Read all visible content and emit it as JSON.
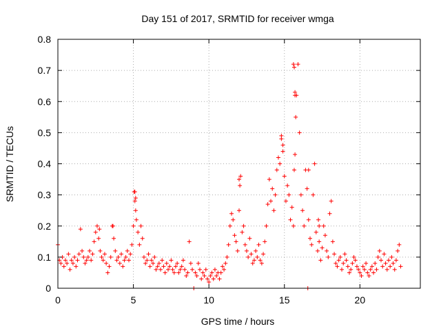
{
  "chart_data": {
    "type": "scatter",
    "title": "Day 151 of 2017, SRMTID for receiver wmga",
    "xlabel": "GPS time / hours",
    "ylabel": "SRMTID / TECUs",
    "xlim": [
      0,
      24
    ],
    "ylim": [
      0,
      0.8
    ],
    "xticks": [
      "0",
      "5",
      "10",
      "15",
      "20"
    ],
    "yticks": [
      "0",
      "0.1",
      "0.2",
      "0.3",
      "0.4",
      "0.5",
      "0.6",
      "0.7",
      "0.8"
    ],
    "grid": true,
    "marker": "plus",
    "colors": {
      "series": "#ff0000",
      "grid": "#aaaaaa",
      "axis": "#000000"
    },
    "series": [
      {
        "name": "SRMTID",
        "x": [
          0.0,
          0.1,
          0.2,
          0.3,
          0.4,
          0.5,
          0.6,
          0.7,
          0.8,
          0.9,
          1.0,
          1.1,
          1.2,
          1.3,
          1.4,
          1.5,
          1.6,
          1.7,
          1.8,
          1.9,
          2.0,
          2.1,
          2.2,
          2.3,
          2.4,
          2.5,
          2.6,
          2.7,
          2.8,
          2.9,
          3.0,
          3.1,
          3.2,
          3.3,
          3.4,
          3.5,
          3.6,
          3.7,
          3.8,
          3.9,
          4.0,
          4.1,
          4.2,
          4.3,
          4.4,
          4.5,
          4.6,
          4.7,
          4.8,
          4.9,
          5.0,
          5.05,
          5.1,
          5.15,
          5.2,
          5.3,
          5.4,
          5.5,
          5.6,
          5.7,
          5.8,
          5.9,
          6.0,
          6.1,
          6.2,
          6.3,
          6.4,
          6.5,
          6.6,
          6.7,
          6.8,
          6.9,
          7.0,
          7.1,
          7.2,
          7.3,
          7.4,
          7.5,
          7.6,
          7.7,
          7.8,
          7.9,
          8.0,
          8.1,
          8.2,
          8.3,
          8.4,
          8.5,
          8.6,
          8.7,
          8.8,
          8.9,
          9.0,
          9.1,
          9.2,
          9.3,
          9.4,
          9.5,
          9.6,
          9.7,
          9.8,
          9.9,
          10.0,
          10.1,
          10.2,
          10.3,
          10.4,
          10.5,
          10.6,
          10.7,
          10.8,
          10.9,
          11.0,
          11.1,
          11.2,
          11.3,
          11.4,
          11.5,
          11.6,
          11.7,
          11.8,
          11.9,
          12.0,
          12.1,
          12.2,
          12.3,
          12.4,
          12.5,
          12.6,
          12.7,
          12.8,
          12.9,
          13.0,
          13.1,
          13.2,
          13.3,
          13.4,
          13.5,
          13.6,
          13.7,
          13.8,
          13.9,
          14.0,
          14.1,
          14.2,
          14.3,
          14.4,
          14.5,
          14.6,
          14.7,
          14.8,
          14.9,
          15.0,
          15.1,
          15.2,
          15.3,
          15.4,
          15.5,
          15.6,
          15.65,
          15.7,
          15.75,
          15.8,
          15.9,
          16.0,
          16.1,
          16.2,
          16.3,
          16.4,
          16.5,
          16.6,
          16.7,
          16.8,
          16.9,
          17.0,
          17.1,
          17.2,
          17.3,
          17.4,
          17.5,
          17.6,
          17.7,
          17.8,
          17.9,
          18.0,
          18.1,
          18.2,
          18.3,
          18.4,
          18.5,
          18.6,
          18.7,
          18.8,
          18.9,
          19.0,
          19.1,
          19.2,
          19.3,
          19.4,
          19.5,
          19.6,
          19.7,
          19.8,
          19.9,
          20.0,
          20.1,
          20.2,
          20.3,
          20.4,
          20.5,
          20.6,
          20.7,
          20.8,
          20.9,
          21.0,
          21.1,
          21.2,
          21.3,
          21.4,
          21.5,
          21.6,
          21.7,
          21.8,
          21.9,
          22.0,
          22.1,
          22.2,
          22.3,
          22.4,
          22.5,
          22.6,
          22.7,
          2.75,
          3.65,
          5.1,
          5.15,
          12.0,
          12.05,
          14.8,
          14.9,
          15.6,
          15.65,
          15.7,
          15.7,
          16.55,
          16.6,
          17.25,
          17.3
        ],
        "y": [
          0.14,
          0.09,
          0.08,
          0.1,
          0.07,
          0.09,
          0.08,
          0.11,
          0.06,
          0.09,
          0.08,
          0.1,
          0.07,
          0.09,
          0.11,
          0.19,
          0.12,
          0.1,
          0.08,
          0.09,
          0.1,
          0.12,
          0.09,
          0.11,
          0.15,
          0.18,
          0.2,
          0.16,
          0.12,
          0.1,
          0.09,
          0.11,
          0.08,
          0.05,
          0.07,
          0.1,
          0.2,
          0.16,
          0.12,
          0.09,
          0.1,
          0.08,
          0.11,
          0.07,
          0.09,
          0.1,
          0.12,
          0.09,
          0.11,
          0.14,
          0.2,
          0.31,
          0.28,
          0.25,
          0.22,
          0.18,
          0.14,
          0.2,
          0.16,
          0.1,
          0.08,
          0.09,
          0.11,
          0.07,
          0.09,
          0.08,
          0.1,
          0.06,
          0.07,
          0.08,
          0.06,
          0.09,
          0.07,
          0.05,
          0.08,
          0.06,
          0.07,
          0.09,
          0.06,
          0.05,
          0.07,
          0.08,
          0.05,
          0.06,
          0.07,
          0.09,
          0.06,
          0.04,
          0.05,
          0.15,
          0.08,
          0.06,
          0.0,
          0.05,
          0.04,
          0.08,
          0.06,
          0.03,
          0.05,
          0.04,
          0.06,
          0.03,
          0.02,
          0.04,
          0.05,
          0.03,
          0.06,
          0.04,
          0.05,
          0.03,
          0.05,
          0.07,
          0.06,
          0.08,
          0.1,
          0.14,
          0.2,
          0.24,
          0.22,
          0.17,
          0.15,
          0.12,
          0.25,
          0.36,
          0.18,
          0.2,
          0.14,
          0.12,
          0.1,
          0.16,
          0.11,
          0.08,
          0.09,
          0.12,
          0.1,
          0.14,
          0.09,
          0.08,
          0.11,
          0.15,
          0.2,
          0.27,
          0.35,
          0.28,
          0.32,
          0.25,
          0.3,
          0.38,
          0.42,
          0.4,
          0.48,
          0.44,
          0.36,
          0.28,
          0.33,
          0.3,
          0.22,
          0.26,
          0.2,
          0.38,
          0.43,
          0.55,
          0.62,
          0.72,
          0.5,
          0.3,
          0.25,
          0.2,
          0.38,
          0.32,
          0.22,
          0.16,
          0.14,
          0.3,
          0.4,
          0.18,
          0.12,
          0.15,
          0.09,
          0.13,
          0.2,
          0.17,
          0.12,
          0.1,
          0.24,
          0.28,
          0.15,
          0.11,
          0.08,
          0.07,
          0.09,
          0.1,
          0.06,
          0.08,
          0.11,
          0.09,
          0.07,
          0.05,
          0.06,
          0.08,
          0.1,
          0.09,
          0.07,
          0.06,
          0.05,
          0.04,
          0.07,
          0.06,
          0.08,
          0.05,
          0.04,
          0.06,
          0.07,
          0.05,
          0.08,
          0.06,
          0.1,
          0.12,
          0.09,
          0.07,
          0.11,
          0.08,
          0.06,
          0.09,
          0.07,
          0.1,
          0.08,
          0.06,
          0.09,
          0.12,
          0.14,
          0.07,
          0.19,
          0.2,
          0.31,
          0.29,
          0.35,
          0.33,
          0.49,
          0.46,
          0.72,
          0.71,
          0.63,
          0.62,
          0.0,
          0.38,
          0.22,
          0.2
        ]
      }
    ]
  }
}
